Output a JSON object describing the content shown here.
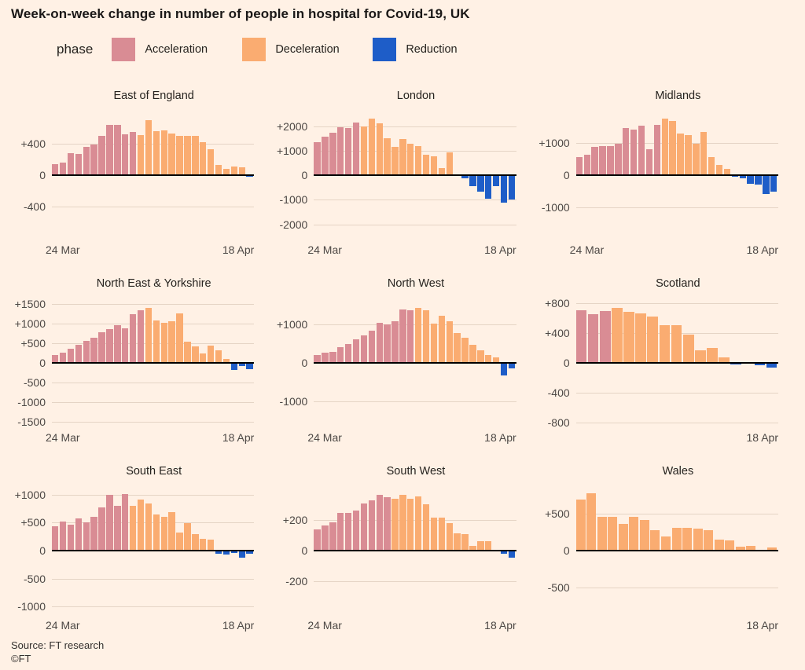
{
  "footer": {
    "source": "Source: FT research",
    "copyright": "©FT"
  },
  "colors": {
    "background": "#FFF1E5",
    "acceleration": "#D98C94",
    "deceleration": "#FAAC71",
    "reduction": "#1E5DC8",
    "gridline": "#E5D4C5",
    "zero_axis": "#000000"
  },
  "chart_data": {
    "type": "bar",
    "title": "Week-on-week change in number of people in hospital for Covid-19, UK",
    "xlabel": "",
    "ylabel": "",
    "grid": "horizontal gridlines on",
    "legend": {
      "title": "phase",
      "position": "top",
      "entries": [
        {
          "label": "Acceleration",
          "phase": "a",
          "color": "#D98C94"
        },
        {
          "label": "Deceleration",
          "phase": "d",
          "color": "#FAAC71"
        },
        {
          "label": "Reduction",
          "phase": "r",
          "color": "#1E5DC8"
        }
      ]
    },
    "x_range": [
      "24 Mar",
      "18 Apr"
    ],
    "panels": [
      {
        "name": "East of England",
        "ymax": 840,
        "ticks": [
          {
            "label": "+400",
            "v": 400
          },
          {
            "label": "0",
            "v": 0
          },
          {
            "label": "-400",
            "v": -400
          }
        ],
        "x_left": "24 Mar",
        "x_right": "18 Apr",
        "phases": "aaaaaaaaaaaddddddddddddddr",
        "values": [
          135,
          160,
          275,
          270,
          355,
          385,
          495,
          635,
          630,
          515,
          545,
          505,
          690,
          550,
          565,
          520,
          490,
          490,
          490,
          420,
          325,
          130,
          75,
          105,
          95,
          -15
        ]
      },
      {
        "name": "London",
        "ymax": 2720,
        "ticks": [
          {
            "label": "+2000",
            "v": 2000
          },
          {
            "label": "+1000",
            "v": 1000
          },
          {
            "label": "0",
            "v": 0
          },
          {
            "label": "-1000",
            "v": -1000
          },
          {
            "label": "-2000",
            "v": -2000
          }
        ],
        "x_left": "24 Mar",
        "x_right": "18 Apr",
        "phases": "aaaaaadddddddddddddrrrrrrr",
        "values": [
          1360,
          1580,
          1730,
          1950,
          1925,
          2150,
          2000,
          2300,
          2120,
          1520,
          1145,
          1470,
          1285,
          1200,
          820,
          765,
          300,
          930,
          0,
          -130,
          -460,
          -680,
          -970,
          -450,
          -1120,
          -1000
        ]
      },
      {
        "name": "Midlands",
        "ymax": 2070,
        "ticks": [
          {
            "label": "+1000",
            "v": 1000
          },
          {
            "label": "0",
            "v": 0
          },
          {
            "label": "-1000",
            "v": -1000
          }
        ],
        "x_left": "24 Mar",
        "x_right": "18 Apr",
        "phases": "aaaaaaaaaaadddddddddrrrrrr",
        "values": [
          560,
          640,
          880,
          890,
          890,
          985,
          1450,
          1425,
          1545,
          815,
          1570,
          1750,
          1690,
          1300,
          1245,
          985,
          1350,
          570,
          310,
          205,
          -50,
          -100,
          -280,
          -300,
          -590,
          -520
        ]
      },
      {
        "name": "North East & Yorkshire",
        "ymax": 1690,
        "ticks": [
          {
            "label": "+1500",
            "v": 1500
          },
          {
            "label": "+1000",
            "v": 1000
          },
          {
            "label": "+500",
            "v": 500
          },
          {
            "label": "0",
            "v": 0
          },
          {
            "label": "-500",
            "v": -500
          },
          {
            "label": "-1000",
            "v": -1000
          },
          {
            "label": "-1500",
            "v": -1500
          }
        ],
        "x_left": "24 Mar",
        "x_right": "18 Apr",
        "phases": "aaaaaaaaaaaadddddddddddrrr",
        "values": [
          200,
          260,
          360,
          450,
          550,
          640,
          780,
          850,
          950,
          880,
          1230,
          1330,
          1400,
          1080,
          1020,
          1060,
          1250,
          540,
          420,
          240,
          430,
          320,
          90,
          -180,
          -80,
          -150
        ]
      },
      {
        "name": "North West",
        "ymax": 1750,
        "ticks": [
          {
            "label": "+1000",
            "v": 1000
          },
          {
            "label": "0",
            "v": 0
          },
          {
            "label": "-1000",
            "v": -1000
          }
        ],
        "x_left": "24 Mar",
        "x_right": "18 Apr",
        "phases": "aaaaaaaaaaaaadddddddddddrr",
        "values": [
          200,
          260,
          280,
          420,
          500,
          610,
          720,
          850,
          1060,
          1000,
          1100,
          1400,
          1380,
          1450,
          1390,
          1040,
          1230,
          1090,
          790,
          650,
          480,
          320,
          200,
          150,
          -330,
          -150
        ]
      },
      {
        "name": "Scotland",
        "ymax": 895,
        "ticks": [
          {
            "label": "+800",
            "v": 800
          },
          {
            "label": "+400",
            "v": 400
          },
          {
            "label": "0",
            "v": 0
          },
          {
            "label": "-400",
            "v": -400
          },
          {
            "label": "-800",
            "v": -800
          }
        ],
        "x_left": "",
        "x_right": "18 Apr",
        "phases": "aaaddddddddddrdrr",
        "values": [
          710,
          650,
          700,
          735,
          680,
          665,
          620,
          505,
          510,
          380,
          165,
          200,
          70,
          -25,
          15,
          -35,
          -60
        ]
      },
      {
        "name": "South East",
        "ymax": 1190,
        "ticks": [
          {
            "label": "+1000",
            "v": 1000
          },
          {
            "label": "+500",
            "v": 500
          },
          {
            "label": "0",
            "v": 0
          },
          {
            "label": "-500",
            "v": -500
          },
          {
            "label": "-1000",
            "v": -1000
          }
        ],
        "x_left": "24 Mar",
        "x_right": "18 Apr",
        "phases": "aaaaaaaaaadddddddddddrrrrr",
        "values": [
          440,
          515,
          460,
          575,
          505,
          600,
          765,
          1000,
          805,
          1010,
          795,
          910,
          845,
          650,
          600,
          690,
          320,
          495,
          295,
          205,
          195,
          -50,
          -70,
          -40,
          -130,
          -60
        ]
      },
      {
        "name": "South West",
        "ymax": 435,
        "ticks": [
          {
            "label": "+200",
            "v": 200
          },
          {
            "label": "0",
            "v": 0
          },
          {
            "label": "-200",
            "v": -200
          }
        ],
        "x_left": "24 Mar",
        "x_right": "18 Apr",
        "phases": "aaaaaaaaaaddddddddddddddrr",
        "values": [
          140,
          165,
          185,
          245,
          245,
          260,
          305,
          330,
          365,
          350,
          340,
          365,
          340,
          355,
          300,
          215,
          215,
          180,
          115,
          105,
          30,
          60,
          60,
          0,
          -20,
          -45
        ]
      },
      {
        "name": "Wales",
        "ymax": 910,
        "ticks": [
          {
            "label": "+500",
            "v": 500
          },
          {
            "label": "0",
            "v": 0
          },
          {
            "label": "-500",
            "v": -500
          }
        ],
        "x_left": "",
        "x_right": "18 Apr",
        "phases": "ddddddddddddddddddd",
        "values": [
          700,
          780,
          460,
          465,
          365,
          460,
          420,
          280,
          195,
          310,
          315,
          300,
          275,
          145,
          140,
          50,
          65,
          10,
          45
        ]
      }
    ]
  }
}
